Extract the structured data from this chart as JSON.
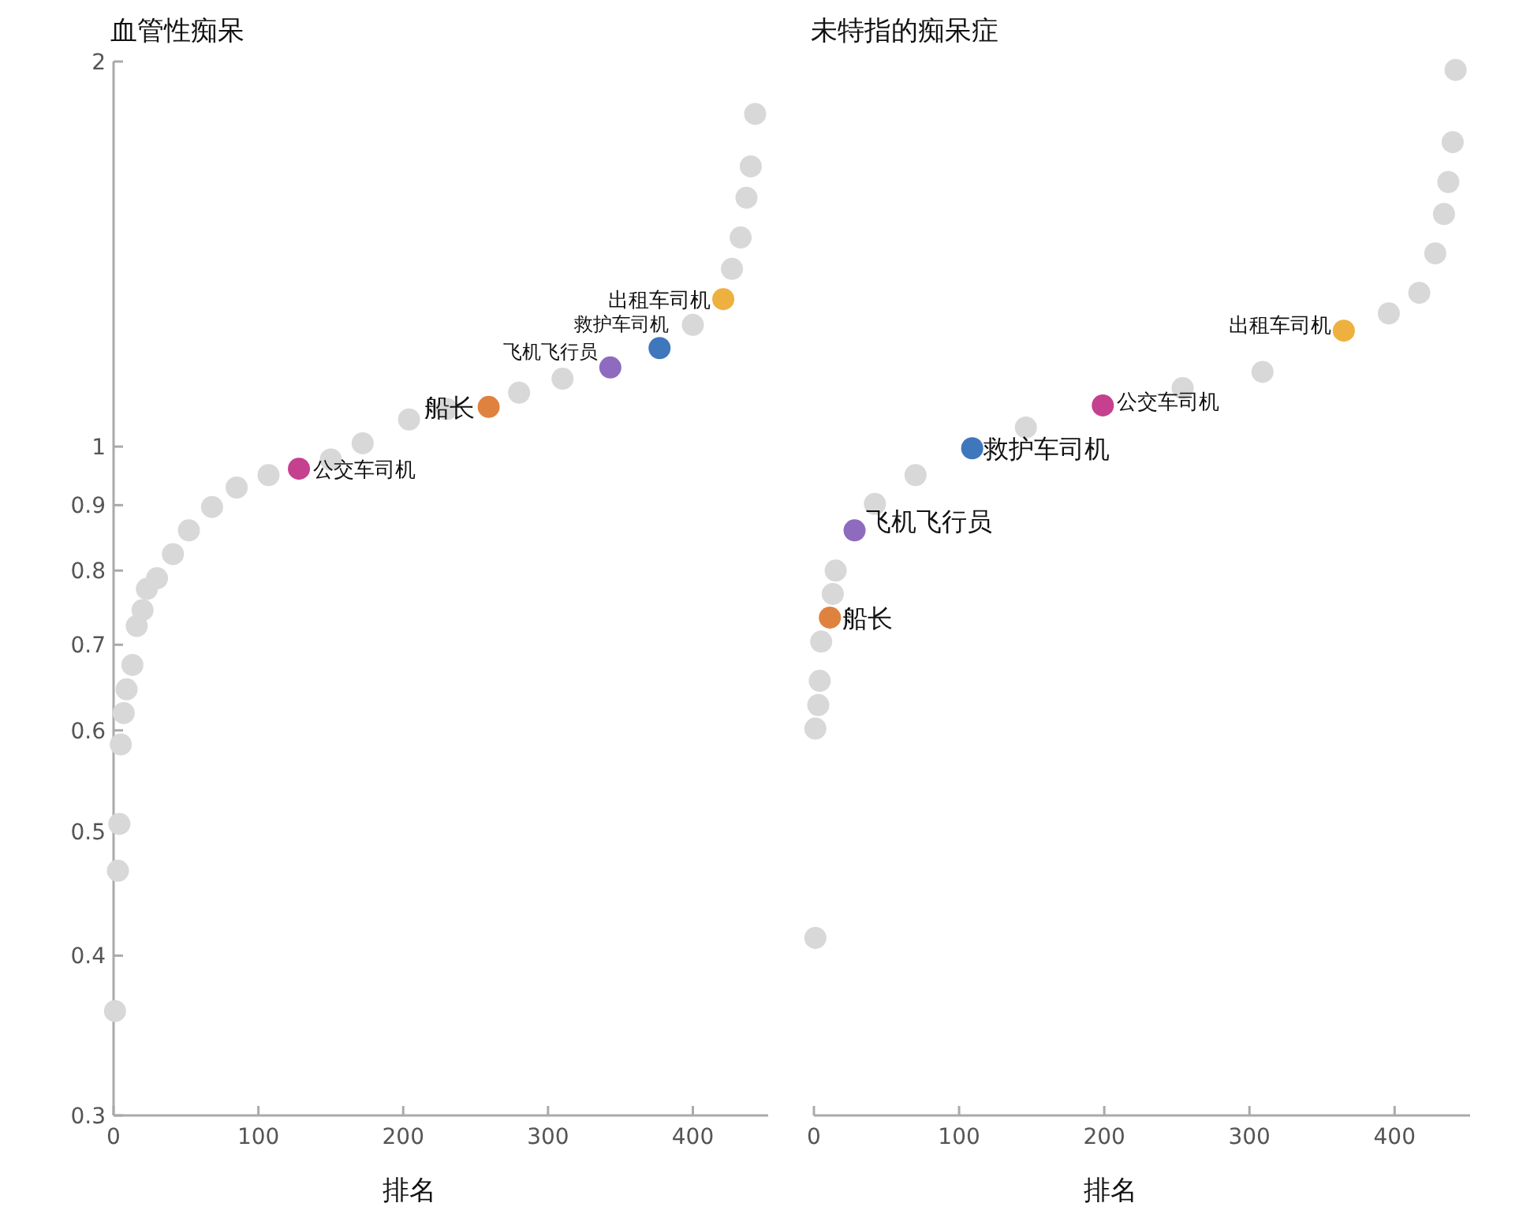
{
  "chart_data": [
    {
      "type": "scatter",
      "title": "血管性痴呆",
      "xlabel": "排名",
      "xlim": [
        0,
        452
      ],
      "xticks": [
        0,
        100,
        200,
        300,
        400
      ],
      "ylim": [
        0.3,
        2
      ],
      "yticks": [
        0.3,
        0.4,
        0.5,
        0.6,
        0.7,
        0.8,
        0.9,
        1,
        2
      ],
      "log": true,
      "marker": "circle",
      "series": [
        {
          "color": "#d8d8d8",
          "x": [
            1,
            3,
            4,
            5,
            7,
            9,
            13,
            16,
            20,
            23,
            30,
            41,
            52,
            68,
            85,
            107,
            150,
            172,
            204,
            230,
            280,
            310,
            400,
            427,
            433,
            437,
            440,
            443
          ],
          "values": [
            0.362,
            0.466,
            0.507,
            0.585,
            0.619,
            0.646,
            0.675,
            0.724,
            0.745,
            0.774,
            0.789,
            0.824,
            0.86,
            0.897,
            0.929,
            0.95,
            0.977,
            1.006,
            1.05,
            1.07,
            1.102,
            1.13,
            1.245,
            1.377,
            1.457,
            1.565,
            1.656,
            1.82
          ]
        },
        {
          "name": "公交车司机",
          "color": "#c5408f",
          "x": [
            128
          ],
          "values": [
            0.961
          ]
        },
        {
          "name": "船长",
          "color": "#e0823f",
          "x": [
            259
          ],
          "values": [
            1.074
          ]
        },
        {
          "name": "飞机飞行员",
          "color": "#8e6bbf",
          "x": [
            343
          ],
          "values": [
            1.153
          ]
        },
        {
          "name": "救护车司机",
          "color": "#3f77bd",
          "x": [
            377
          ],
          "values": [
            1.194
          ]
        },
        {
          "name": "出租车司机",
          "color": "#eeb13f",
          "x": [
            421
          ],
          "values": [
            1.304
          ]
        }
      ]
    },
    {
      "type": "scatter",
      "title": "未特指的痴呆症",
      "xlabel": "排名",
      "xlim": [
        0,
        452
      ],
      "xticks": [
        0,
        100,
        200,
        300,
        400
      ],
      "ylim": [
        0.3,
        2
      ],
      "log": true,
      "marker": "circle",
      "tick_labels": "x",
      "series": [
        {
          "color": "#d8d8d8",
          "x": [
            1,
            1,
            3,
            4,
            5,
            13,
            15,
            42,
            70,
            146,
            254,
            309,
            396,
            417,
            428,
            434,
            437,
            440,
            442
          ],
          "values": [
            0.413,
            0.602,
            0.628,
            0.656,
            0.704,
            0.767,
            0.8,
            0.902,
            0.95,
            1.035,
            1.111,
            1.144,
            1.271,
            1.319,
            1.416,
            1.52,
            1.61,
            1.73,
            1.97
          ]
        },
        {
          "name": "船长",
          "color": "#e0823f",
          "x": [
            11
          ],
          "values": [
            0.735
          ]
        },
        {
          "name": "飞机飞行员",
          "color": "#8e6bbf",
          "x": [
            28
          ],
          "values": [
            0.86
          ]
        },
        {
          "name": "救护车司机",
          "color": "#3f77bd",
          "x": [
            109
          ],
          "values": [
            0.997
          ]
        },
        {
          "name": "公交车司机",
          "color": "#c5408f",
          "x": [
            199
          ],
          "values": [
            1.077
          ]
        },
        {
          "name": "出租车司机",
          "color": "#eeb13f",
          "x": [
            365
          ],
          "values": [
            1.232
          ]
        }
      ]
    }
  ]
}
